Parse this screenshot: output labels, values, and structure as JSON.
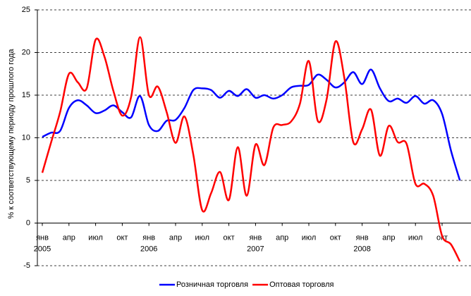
{
  "chart_data": {
    "type": "line",
    "y_axis_label": "% к соответствующему периоду прошлого года",
    "categories": [
      "янв",
      null,
      null,
      "апр",
      null,
      null,
      "июл",
      null,
      null,
      "окт",
      null,
      null,
      "янв",
      null,
      null,
      "апр",
      null,
      null,
      "июл",
      null,
      null,
      "окт",
      null,
      null,
      "янв",
      null,
      null,
      "апр",
      null,
      null,
      "июл",
      null,
      null,
      "окт",
      null,
      null,
      "янв",
      null,
      null,
      "апр",
      null,
      null,
      "июл",
      null,
      null,
      "окт",
      null,
      null
    ],
    "years": [
      "2005",
      null,
      null,
      null,
      null,
      null,
      null,
      null,
      null,
      null,
      null,
      null,
      "2006",
      null,
      null,
      null,
      null,
      null,
      null,
      null,
      null,
      null,
      null,
      null,
      "2007",
      null,
      null,
      null,
      null,
      null,
      null,
      null,
      null,
      null,
      null,
      null,
      "2008",
      null,
      null,
      null,
      null,
      null,
      null,
      null,
      null,
      null,
      null,
      null
    ],
    "series": [
      {
        "name": "Розничная торговля",
        "color": "#0000ff",
        "values": [
          10.1,
          10.6,
          10.8,
          13.5,
          14.4,
          13.8,
          12.9,
          13.2,
          13.8,
          13.0,
          12.4,
          14.9,
          11.5,
          10.8,
          12.0,
          12.1,
          13.5,
          15.6,
          15.8,
          15.6,
          14.7,
          15.5,
          14.9,
          15.7,
          14.7,
          15.0,
          14.6,
          15.0,
          15.9,
          16.1,
          16.2,
          17.4,
          16.8,
          15.9,
          16.5,
          17.7,
          16.3,
          18.0,
          15.8,
          14.3,
          14.6,
          14.1,
          14.9,
          14.0,
          14.4,
          12.8,
          8.5,
          5.0
        ]
      },
      {
        "name": "Оптовая торговля",
        "color": "#ff0000",
        "values": [
          5.9,
          9.5,
          13.0,
          17.5,
          16.5,
          15.8,
          21.5,
          19.5,
          15.5,
          12.6,
          14.8,
          21.8,
          15.0,
          16.0,
          13.0,
          9.4,
          12.5,
          8.0,
          1.5,
          3.5,
          6.0,
          2.7,
          8.9,
          3.2,
          9.2,
          6.8,
          11.2,
          11.5,
          11.9,
          14.0,
          19.0,
          12.0,
          14.5,
          21.3,
          17.0,
          9.5,
          11.0,
          13.3,
          7.9,
          11.4,
          9.5,
          9.3,
          4.6,
          4.6,
          3.2,
          -1.5,
          -2.5,
          -4.5
        ]
      }
    ],
    "ylim": [
      -5,
      25
    ],
    "yticks": [
      -5,
      0,
      5,
      10,
      15,
      20,
      25
    ],
    "grid": true,
    "legend": "bottom"
  }
}
